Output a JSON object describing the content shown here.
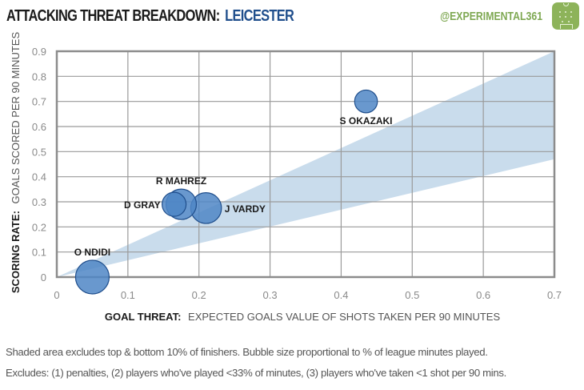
{
  "header": {
    "title_prefix": "ATTACKING THREAT BREAKDOWN:",
    "team": "LEICESTER",
    "handle": "@EXPERIMENTAL361",
    "logo_icon": "football-pitch-icon",
    "team_color": "#1f4e8c",
    "handle_color": "#7ea852"
  },
  "chart_data": {
    "type": "scatter",
    "subtype": "bubble",
    "title": "ATTACKING THREAT BREAKDOWN: LEICESTER",
    "xlabel_bold": "GOAL THREAT:",
    "xlabel_rest": "EXPECTED GOALS VALUE OF SHOTS TAKEN PER 90 MINUTES",
    "ylabel_bold": "SCORING RATE:",
    "ylabel_rest": "GOALS SCORED PER 90 MINUTES",
    "xlim": [
      0,
      0.7
    ],
    "ylim": [
      0,
      0.9
    ],
    "xticks": [
      "0",
      "0.1",
      "0.2",
      "0.3",
      "0.4",
      "0.5",
      "0.6",
      "0.7"
    ],
    "yticks": [
      "0",
      "0.1",
      "0.2",
      "0.3",
      "0.4",
      "0.5",
      "0.6",
      "0.7",
      "0.8",
      "0.9"
    ],
    "grid": true,
    "shaded_band": {
      "description": "excludes top & bottom 10% of finishers",
      "upper_line": [
        [
          0,
          0
        ],
        [
          0.7,
          0.9
        ]
      ],
      "lower_line": [
        [
          0,
          0
        ],
        [
          0.7,
          0.47
        ]
      ],
      "color": "#c9dcec"
    },
    "bubble_color": "#4f86c6",
    "bubble_stroke": "#1f4e8c",
    "points": [
      {
        "name": "O NDIDI",
        "x": 0.05,
        "y": 0.0,
        "minutes_share": 0.98,
        "label_pos": "above"
      },
      {
        "name": "D GRAY",
        "x": 0.165,
        "y": 0.29,
        "minutes_share": 0.5,
        "label_pos": "left"
      },
      {
        "name": "R MAHREZ",
        "x": 0.175,
        "y": 0.29,
        "minutes_share": 0.8,
        "label_pos": "above"
      },
      {
        "name": "J VARDY",
        "x": 0.21,
        "y": 0.275,
        "minutes_share": 0.82,
        "label_pos": "right"
      },
      {
        "name": "S OKAZAKI",
        "x": 0.435,
        "y": 0.7,
        "minutes_share": 0.45,
        "label_pos": "below"
      }
    ]
  },
  "footnotes": {
    "line1": "Shaded area excludes top & bottom 10% of finishers. Bubble size proportional to % of league minutes played.",
    "line2": "Excludes: (1) penalties, (2) players who've played <33% of minutes, (3) players who've taken <1 shot per 90 mins."
  }
}
